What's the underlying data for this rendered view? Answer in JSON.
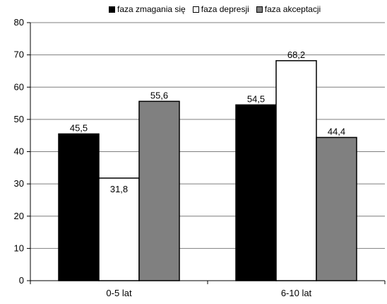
{
  "chart_data": {
    "type": "bar",
    "categories": [
      "0-5 lat",
      "6-10 lat"
    ],
    "series": [
      {
        "name": "faza zmagania  się",
        "color": "#000000",
        "values": [
          45.5,
          54.5
        ],
        "labels": [
          "45,5",
          "54,5"
        ]
      },
      {
        "name": "faza depresji",
        "color": "#ffffff",
        "values": [
          31.8,
          68.2
        ],
        "labels": [
          "31,8",
          "68,2"
        ]
      },
      {
        "name": "faza akceptacji",
        "color": "#808080",
        "values": [
          55.6,
          44.4
        ],
        "labels": [
          "55,6",
          "44,4"
        ]
      }
    ],
    "yticks": [
      "0",
      "10",
      "20",
      "30",
      "40",
      "50",
      "60",
      "70",
      "80"
    ],
    "ylim": [
      0,
      80
    ],
    "grid": true,
    "legend_position": "top",
    "title": "",
    "xlabel": "",
    "ylabel": ""
  }
}
